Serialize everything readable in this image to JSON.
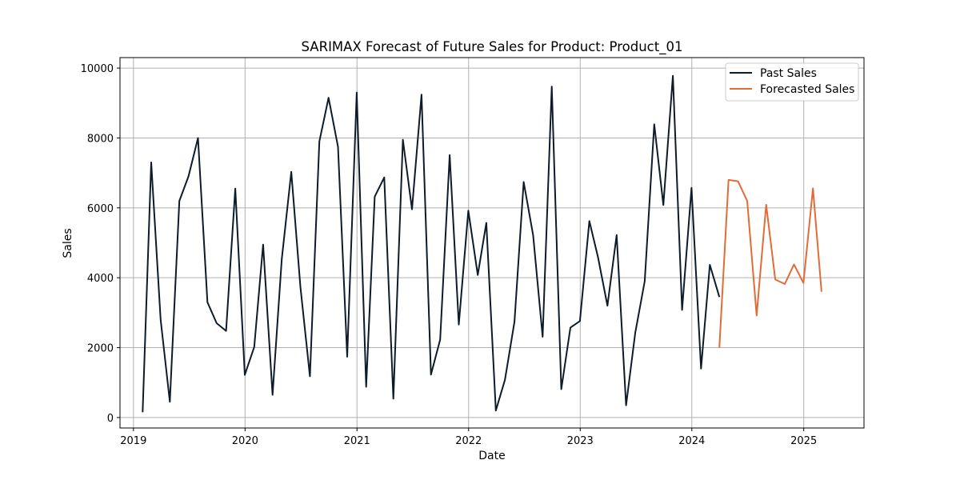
{
  "chart_data": {
    "type": "line",
    "title": "SARIMAX Forecast of Future Sales for Product: Product_01",
    "xlabel": "Date",
    "ylabel": "Sales",
    "xlim": [
      "2018-11-18",
      "2025-07-17"
    ],
    "ylim": [
      -300,
      10300
    ],
    "x_ticks": [
      "2019",
      "2020",
      "2021",
      "2022",
      "2023",
      "2024",
      "2025"
    ],
    "y_ticks": [
      0,
      2000,
      4000,
      6000,
      8000,
      10000
    ],
    "grid": true,
    "legend_position": "top-right",
    "series": [
      {
        "name": "Past Sales",
        "color": "#0d1b2a",
        "x": [
          "2019-01-31",
          "2019-02-28",
          "2019-03-31",
          "2019-04-30",
          "2019-05-31",
          "2019-06-30",
          "2019-07-31",
          "2019-08-31",
          "2019-09-30",
          "2019-10-31",
          "2019-11-30",
          "2019-12-31",
          "2020-01-31",
          "2020-02-29",
          "2020-03-31",
          "2020-04-30",
          "2020-05-31",
          "2020-06-30",
          "2020-07-31",
          "2020-08-31",
          "2020-09-30",
          "2020-10-31",
          "2020-11-30",
          "2020-12-31",
          "2021-01-31",
          "2021-02-28",
          "2021-03-31",
          "2021-04-30",
          "2021-05-31",
          "2021-06-30",
          "2021-07-31",
          "2021-08-31",
          "2021-09-30",
          "2021-10-31",
          "2021-11-30",
          "2021-12-31",
          "2022-01-31",
          "2022-02-28",
          "2022-03-31",
          "2022-04-30",
          "2022-05-31",
          "2022-06-30",
          "2022-07-31",
          "2022-08-31",
          "2022-09-30",
          "2022-10-31",
          "2022-11-30",
          "2022-12-31",
          "2023-01-31",
          "2023-02-28",
          "2023-03-31",
          "2023-04-30",
          "2023-05-31",
          "2023-06-30",
          "2023-07-31",
          "2023-08-31",
          "2023-09-30",
          "2023-10-31",
          "2023-11-30",
          "2023-12-31",
          "2024-01-31",
          "2024-02-29",
          "2024-03-31"
        ],
        "values": [
          150,
          7300,
          2800,
          450,
          6200,
          6900,
          8000,
          3300,
          2700,
          2480,
          6550,
          1220,
          2020,
          4950,
          650,
          4530,
          7030,
          3740,
          1180,
          7900,
          9150,
          7750,
          1740,
          9300,
          880,
          6320,
          6870,
          540,
          7950,
          5960,
          9240,
          1230,
          2230,
          7510,
          2660,
          5920,
          4080,
          5570,
          200,
          1080,
          2740,
          6740,
          5220,
          2310,
          9470,
          810,
          2570,
          2760,
          5620,
          4600,
          3200,
          5220,
          350,
          2430,
          3900,
          8390,
          6080,
          9780,
          3080,
          6570,
          1400,
          4370,
          3450
        ]
      },
      {
        "name": "Forecasted Sales",
        "color": "#e06c37",
        "x": [
          "2024-03-31",
          "2024-04-30",
          "2024-05-31",
          "2024-06-30",
          "2024-07-31",
          "2024-08-31",
          "2024-09-30",
          "2024-10-31",
          "2024-11-30",
          "2024-12-31",
          "2025-01-31",
          "2025-02-28"
        ],
        "values": [
          2000,
          6800,
          6760,
          6200,
          2920,
          6090,
          3950,
          3820,
          4380,
          3850,
          6560,
          3600
        ]
      }
    ]
  }
}
